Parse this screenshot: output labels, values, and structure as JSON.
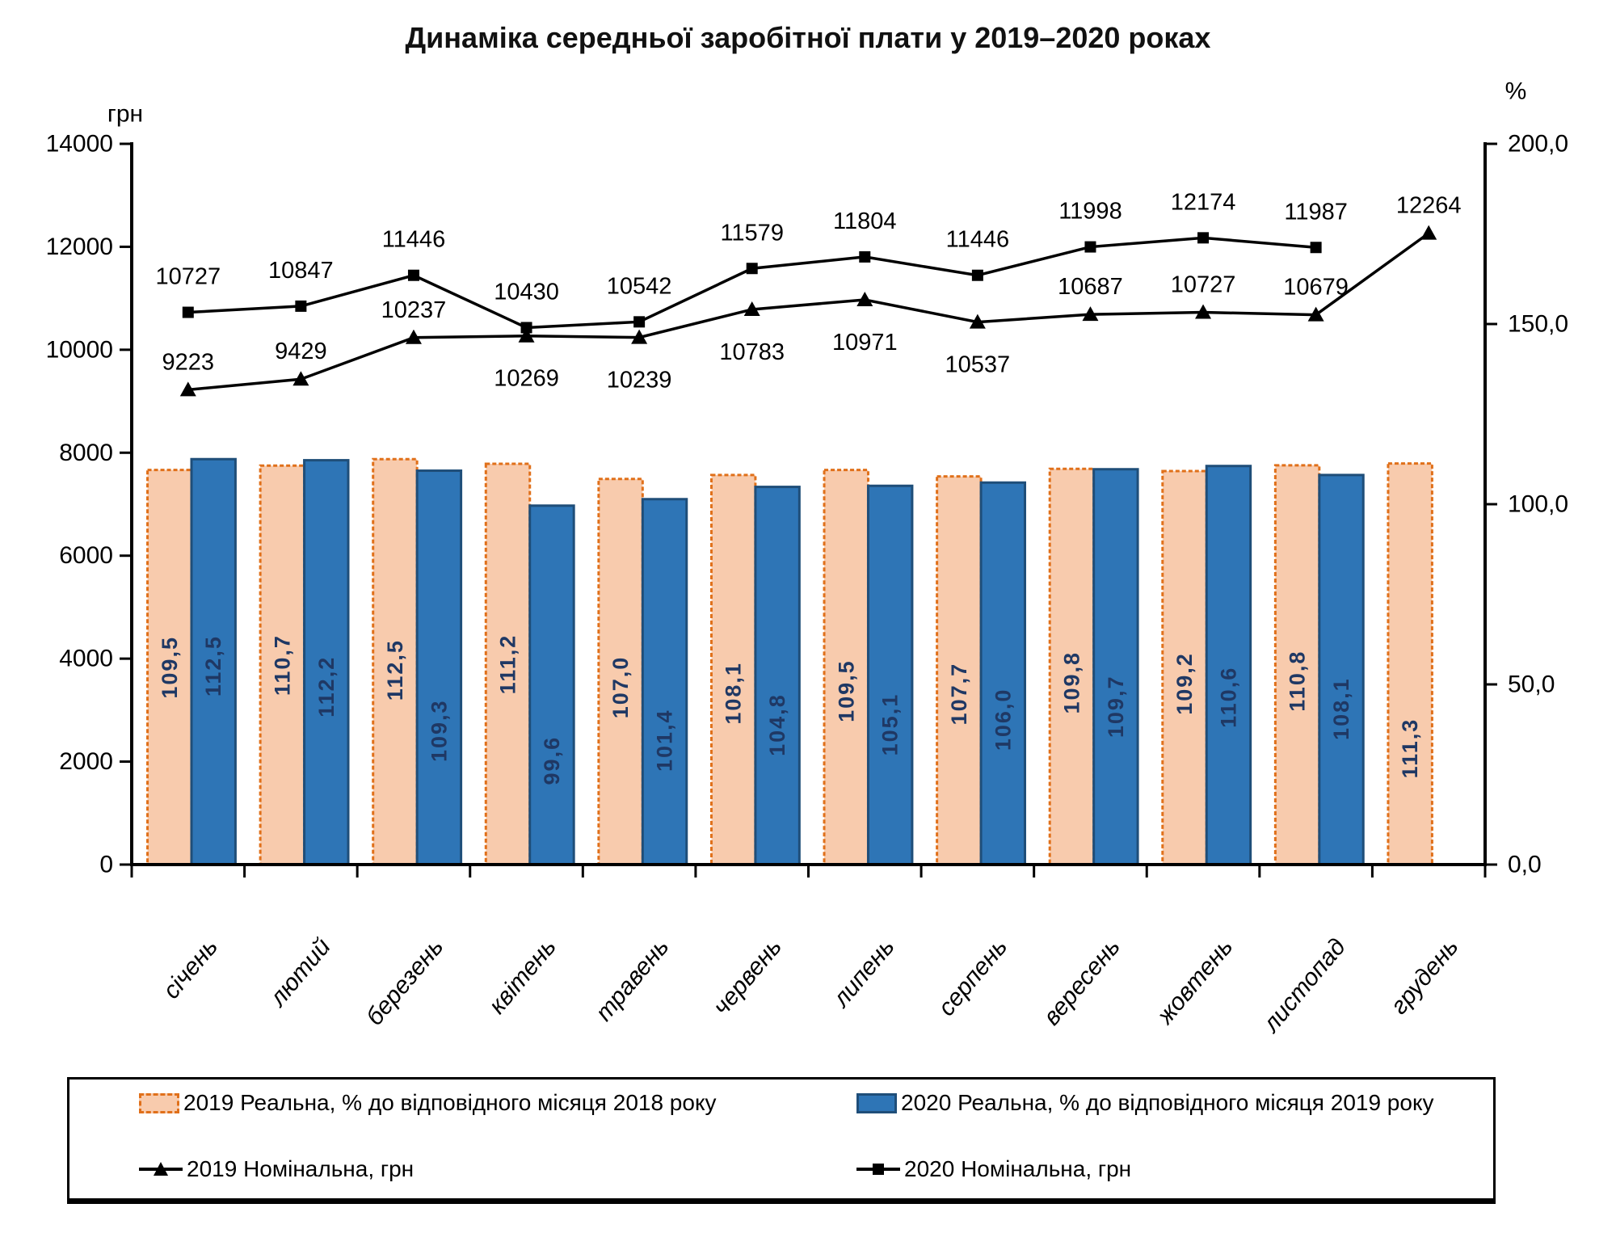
{
  "title": "Динаміка середньої заробітної плати у 2019–2020 роках",
  "left_axis": {
    "unit": "грн",
    "min": 0,
    "max": 14000,
    "step": 2000,
    "tick_labels": [
      "0",
      "2000",
      "4000",
      "6000",
      "8000",
      "10000",
      "12000",
      "14000"
    ]
  },
  "right_axis": {
    "unit": "%",
    "min": 0,
    "max": 200,
    "step": 50,
    "tick_labels": [
      "0,0",
      "50,0",
      "100,0",
      "150,0",
      "200,0"
    ]
  },
  "chart_data": {
    "type": "combo bar+line",
    "categories": [
      "січень",
      "лютий",
      "березень",
      "квітень",
      "травень",
      "червень",
      "липень",
      "серпень",
      "вересень",
      "жовтень",
      "листопад",
      "грудень"
    ],
    "series": [
      {
        "name": "2019 Реальна, % до відповідного місяця 2018 року",
        "type": "bar",
        "axis": "right",
        "fill": "#F8CBAD",
        "border": "#E0701A",
        "values": [
          109.5,
          110.7,
          112.5,
          111.2,
          107.0,
          108.1,
          109.5,
          107.7,
          109.8,
          109.2,
          110.8,
          111.3
        ]
      },
      {
        "name": "2020 Реальна, % до відповідного місяця 2019 року",
        "type": "bar",
        "axis": "right",
        "fill": "#2E75B6",
        "border": "#1F4E79",
        "values": [
          112.5,
          112.2,
          109.3,
          99.6,
          101.4,
          104.8,
          105.1,
          106.0,
          109.7,
          110.6,
          108.1,
          null
        ]
      },
      {
        "name": "2019 Номінальна, грн",
        "type": "line",
        "axis": "left",
        "marker": "triangle",
        "color": "#000000",
        "values": [
          9223,
          9429,
          10237,
          10269,
          10239,
          10783,
          10971,
          10537,
          10687,
          10727,
          10679,
          12264
        ],
        "label_side": [
          "above",
          "above",
          "above",
          "below",
          "below",
          "below",
          "below",
          "below",
          "above",
          "above",
          "above",
          "above"
        ]
      },
      {
        "name": "2020 Номінальна, грн",
        "type": "line",
        "axis": "left",
        "marker": "square",
        "color": "#000000",
        "values": [
          10727,
          10847,
          11446,
          10430,
          10542,
          11579,
          11804,
          11446,
          11998,
          12174,
          11987,
          null
        ],
        "label_side": [
          "above",
          "above",
          "above",
          "above",
          "above",
          "above",
          "above",
          "above",
          "above",
          "above",
          "above",
          "above"
        ]
      }
    ],
    "bar_label_color": "#1F3864",
    "bar_label_pos": {
      "peach": [
        0.5,
        0.5,
        0.52,
        0.5,
        0.54,
        0.56,
        0.56,
        0.56,
        0.54,
        0.54,
        0.54,
        0.71
      ],
      "blue": [
        0.51,
        0.56,
        0.66,
        0.71,
        0.66,
        0.63,
        0.63,
        0.62,
        0.6,
        0.58,
        0.6,
        null
      ]
    },
    "ylim_left": [
      0,
      14000
    ],
    "ylim_right": [
      0,
      200
    ],
    "grid": false,
    "legend_position": "bottom"
  },
  "legend": {
    "items": [
      {
        "label": "2019 Реальна, % до відповідного місяця 2018 року",
        "swatch": "peach-bar"
      },
      {
        "label": "2020 Реальна, % до відповідного місяця 2019 року",
        "swatch": "blue-bar"
      },
      {
        "label": "2019 Номінальна, грн",
        "swatch": "line-triangle"
      },
      {
        "label": "2020 Номінальна, грн",
        "swatch": "line-square"
      }
    ]
  }
}
